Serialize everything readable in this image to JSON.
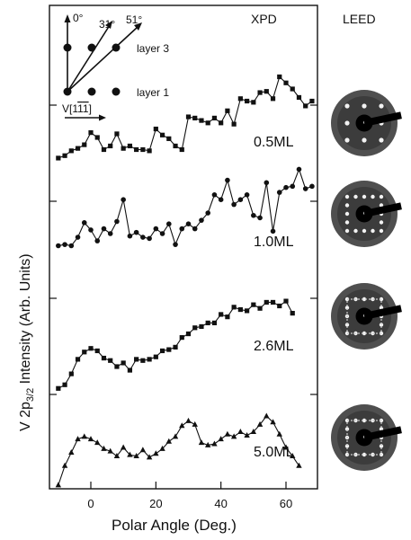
{
  "chart_data": {
    "type": "line",
    "xlabel": "Polar Angle  (Deg.)",
    "ylabel": "V 2p3/2 Intensity  (Arb. Units)",
    "ylabel_parts": {
      "pre": "V 2p",
      "sub": "3/2",
      "post": " Intensity  (Arb. Units)"
    },
    "xlim": [
      -10,
      70
    ],
    "xticks": [
      0,
      20,
      40,
      60
    ],
    "panel_labels": {
      "xpd": "XPD",
      "leed": "LEED"
    },
    "inset": {
      "angles": [
        "0°",
        "31°",
        "51°"
      ],
      "layers": [
        "layer 3",
        "layer 1"
      ],
      "direction": "V[1̅ 1̅]",
      "direction_parts": {
        "pre": "V[1",
        "bar1": "1",
        "bar2": "1",
        "post": "]"
      }
    },
    "series": [
      {
        "name": "0.5ML",
        "marker": "square",
        "x": [
          -10,
          -8,
          -6,
          -4,
          -2,
          0,
          2,
          4,
          6,
          8,
          10,
          12,
          14,
          16,
          18,
          20,
          22,
          24,
          26,
          28,
          30,
          32,
          34,
          36,
          38,
          40,
          42,
          44,
          46,
          48,
          50,
          52,
          54,
          56,
          58,
          60,
          62,
          64,
          66,
          68
        ],
        "y": [
          0.3,
          0.5,
          0.9,
          1.1,
          1.4,
          2.4,
          2.0,
          1.0,
          1.3,
          2.3,
          1.1,
          1.3,
          1.0,
          1.0,
          0.9,
          2.7,
          2.2,
          1.9,
          1.3,
          1.0,
          3.7,
          3.6,
          3.4,
          3.2,
          3.6,
          3.2,
          4.2,
          3.1,
          5.2,
          5.0,
          4.9,
          5.7,
          5.8,
          5.2,
          7.0,
          6.5,
          6.0,
          5.3,
          4.6,
          5.0
        ]
      },
      {
        "name": "1.0ML",
        "marker": "circle",
        "x": [
          -10,
          -8,
          -6,
          -4,
          -2,
          0,
          2,
          4,
          6,
          8,
          10,
          12,
          14,
          16,
          18,
          20,
          22,
          24,
          26,
          28,
          30,
          32,
          34,
          36,
          38,
          40,
          42,
          44,
          46,
          48,
          50,
          52,
          54,
          56,
          58,
          60,
          62,
          64,
          66,
          68
        ],
        "y": [
          1.0,
          1.1,
          1.0,
          1.7,
          2.9,
          2.3,
          1.4,
          2.4,
          2.0,
          3.0,
          4.8,
          1.8,
          2.1,
          1.7,
          1.6,
          2.4,
          2.0,
          2.8,
          1.1,
          2.4,
          2.8,
          2.4,
          3.1,
          3.7,
          5.2,
          4.8,
          6.4,
          4.4,
          4.8,
          5.2,
          3.5,
          3.3,
          6.2,
          2.2,
          5.4,
          5.8,
          5.9,
          7.3,
          5.7,
          5.9
        ]
      },
      {
        "name": "2.6ML",
        "marker": "square",
        "x": [
          -10,
          -8,
          -6,
          -4,
          -2,
          0,
          2,
          4,
          6,
          8,
          10,
          12,
          14,
          16,
          18,
          20,
          22,
          24,
          26,
          28,
          30,
          32,
          34,
          36,
          38,
          40,
          42,
          44,
          46,
          48,
          50,
          52,
          54,
          56,
          58,
          60,
          62
        ],
        "y": [
          0.2,
          0.5,
          1.4,
          2.6,
          3.2,
          3.5,
          3.3,
          2.7,
          2.5,
          2.0,
          2.3,
          1.7,
          2.6,
          2.5,
          2.6,
          2.8,
          3.3,
          3.4,
          3.6,
          4.4,
          4.7,
          5.2,
          5.3,
          5.6,
          5.6,
          6.3,
          6.1,
          6.9,
          6.7,
          6.6,
          7.1,
          6.8,
          7.3,
          7.3,
          7.0,
          7.4,
          6.4
        ]
      },
      {
        "name": "5.0ML",
        "marker": "triangle",
        "x": [
          -10,
          -8,
          -6,
          -4,
          -2,
          0,
          2,
          4,
          6,
          8,
          10,
          12,
          14,
          16,
          18,
          20,
          22,
          24,
          26,
          28,
          30,
          32,
          34,
          36,
          38,
          40,
          42,
          44,
          46,
          48,
          50,
          52,
          54,
          56,
          58,
          60,
          62,
          64
        ],
        "y": [
          0.0,
          1.6,
          2.7,
          3.8,
          4.0,
          3.8,
          3.5,
          3.0,
          2.8,
          2.4,
          3.1,
          2.5,
          2.4,
          2.9,
          2.3,
          2.6,
          3.0,
          3.6,
          4.0,
          4.9,
          5.3,
          5.0,
          3.5,
          3.3,
          3.4,
          3.8,
          4.2,
          4.0,
          4.4,
          4.1,
          4.4,
          5.0,
          5.7,
          5.2,
          4.2,
          3.1,
          2.4,
          1.6
        ]
      }
    ]
  },
  "colors": {
    "ink": "#111111",
    "leed_disc": "#4f4f4f"
  }
}
